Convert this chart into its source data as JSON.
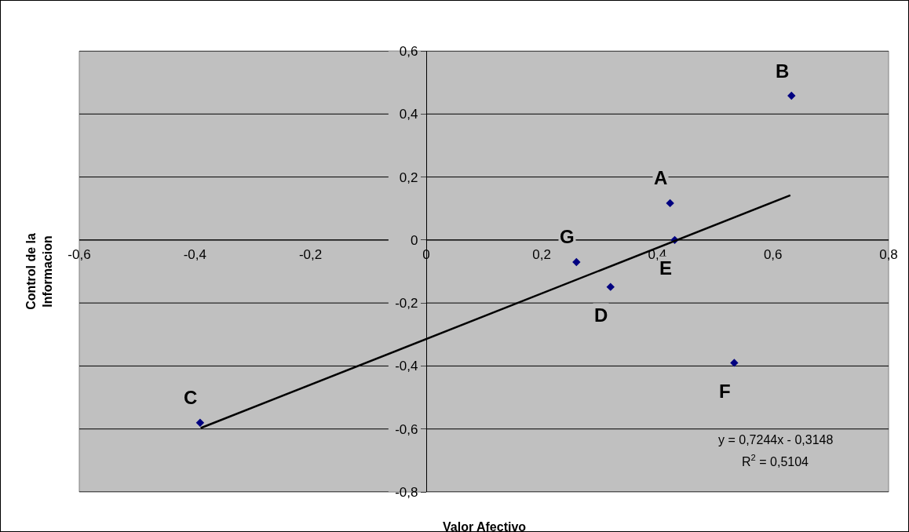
{
  "chart_data": {
    "type": "scatter",
    "xlabel": "Valor Afectivo",
    "ylabel": "Control de la Informacion",
    "series": [
      {
        "type": "scatter",
        "color": "#000080",
        "marker": "diamond",
        "x": [
          0.422,
          0.632,
          -0.391,
          0.319,
          0.43,
          0.533,
          0.26
        ],
        "values": [
          0.117,
          0.458,
          -0.58,
          -0.149,
          0.0,
          -0.39,
          -0.07
        ]
      },
      {
        "type": "line",
        "color": "#000000",
        "marker": "none",
        "line_style": "solid",
        "x": [
          -0.39,
          0.63
        ],
        "values": [
          -0.597,
          0.142
        ]
      }
    ],
    "annotations": [
      {
        "text": "A",
        "x": 0.422,
        "y": 0.117
      },
      {
        "text": "B",
        "x": 0.632,
        "y": 0.458
      },
      {
        "text": "C",
        "x": -0.391,
        "y": -0.58
      },
      {
        "text": "D",
        "x": 0.319,
        "y": -0.149
      },
      {
        "text": "E",
        "x": 0.43,
        "y": 0.0
      },
      {
        "text": "F",
        "x": 0.533,
        "y": -0.39
      },
      {
        "text": "G",
        "x": 0.26,
        "y": -0.07
      },
      "y = 0,7244x - 0,3148",
      "R$^{2}$ = 0,5104"
    ],
    "xlim": [
      -0.6,
      0.8
    ],
    "ylim": [
      -0.8,
      0.6
    ],
    "xticks": [
      {
        "value": -0.6,
        "label": "-0,6"
      },
      {
        "value": -0.4,
        "label": "-0,4"
      },
      {
        "value": -0.2,
        "label": "-0,2"
      },
      0,
      {
        "value": 0.2,
        "label": "0,2"
      },
      {
        "value": 0.4,
        "label": "0,4"
      },
      {
        "value": 0.6,
        "label": "0,6"
      },
      {
        "value": 0.8,
        "label": "0,8"
      }
    ],
    "yticks": [
      {
        "value": -0.8,
        "label": "-0,8"
      },
      {
        "value": -0.6,
        "label": "-0,6"
      },
      {
        "value": -0.4,
        "label": "-0,4"
      },
      {
        "value": -0.2,
        "label": "-0,2"
      },
      0,
      {
        "value": 0.2,
        "label": "0,2"
      },
      {
        "value": 0.4,
        "label": "0,4"
      },
      {
        "value": 0.6,
        "label": "0,6"
      }
    ],
    "grid": "y",
    "legend": false
  }
}
